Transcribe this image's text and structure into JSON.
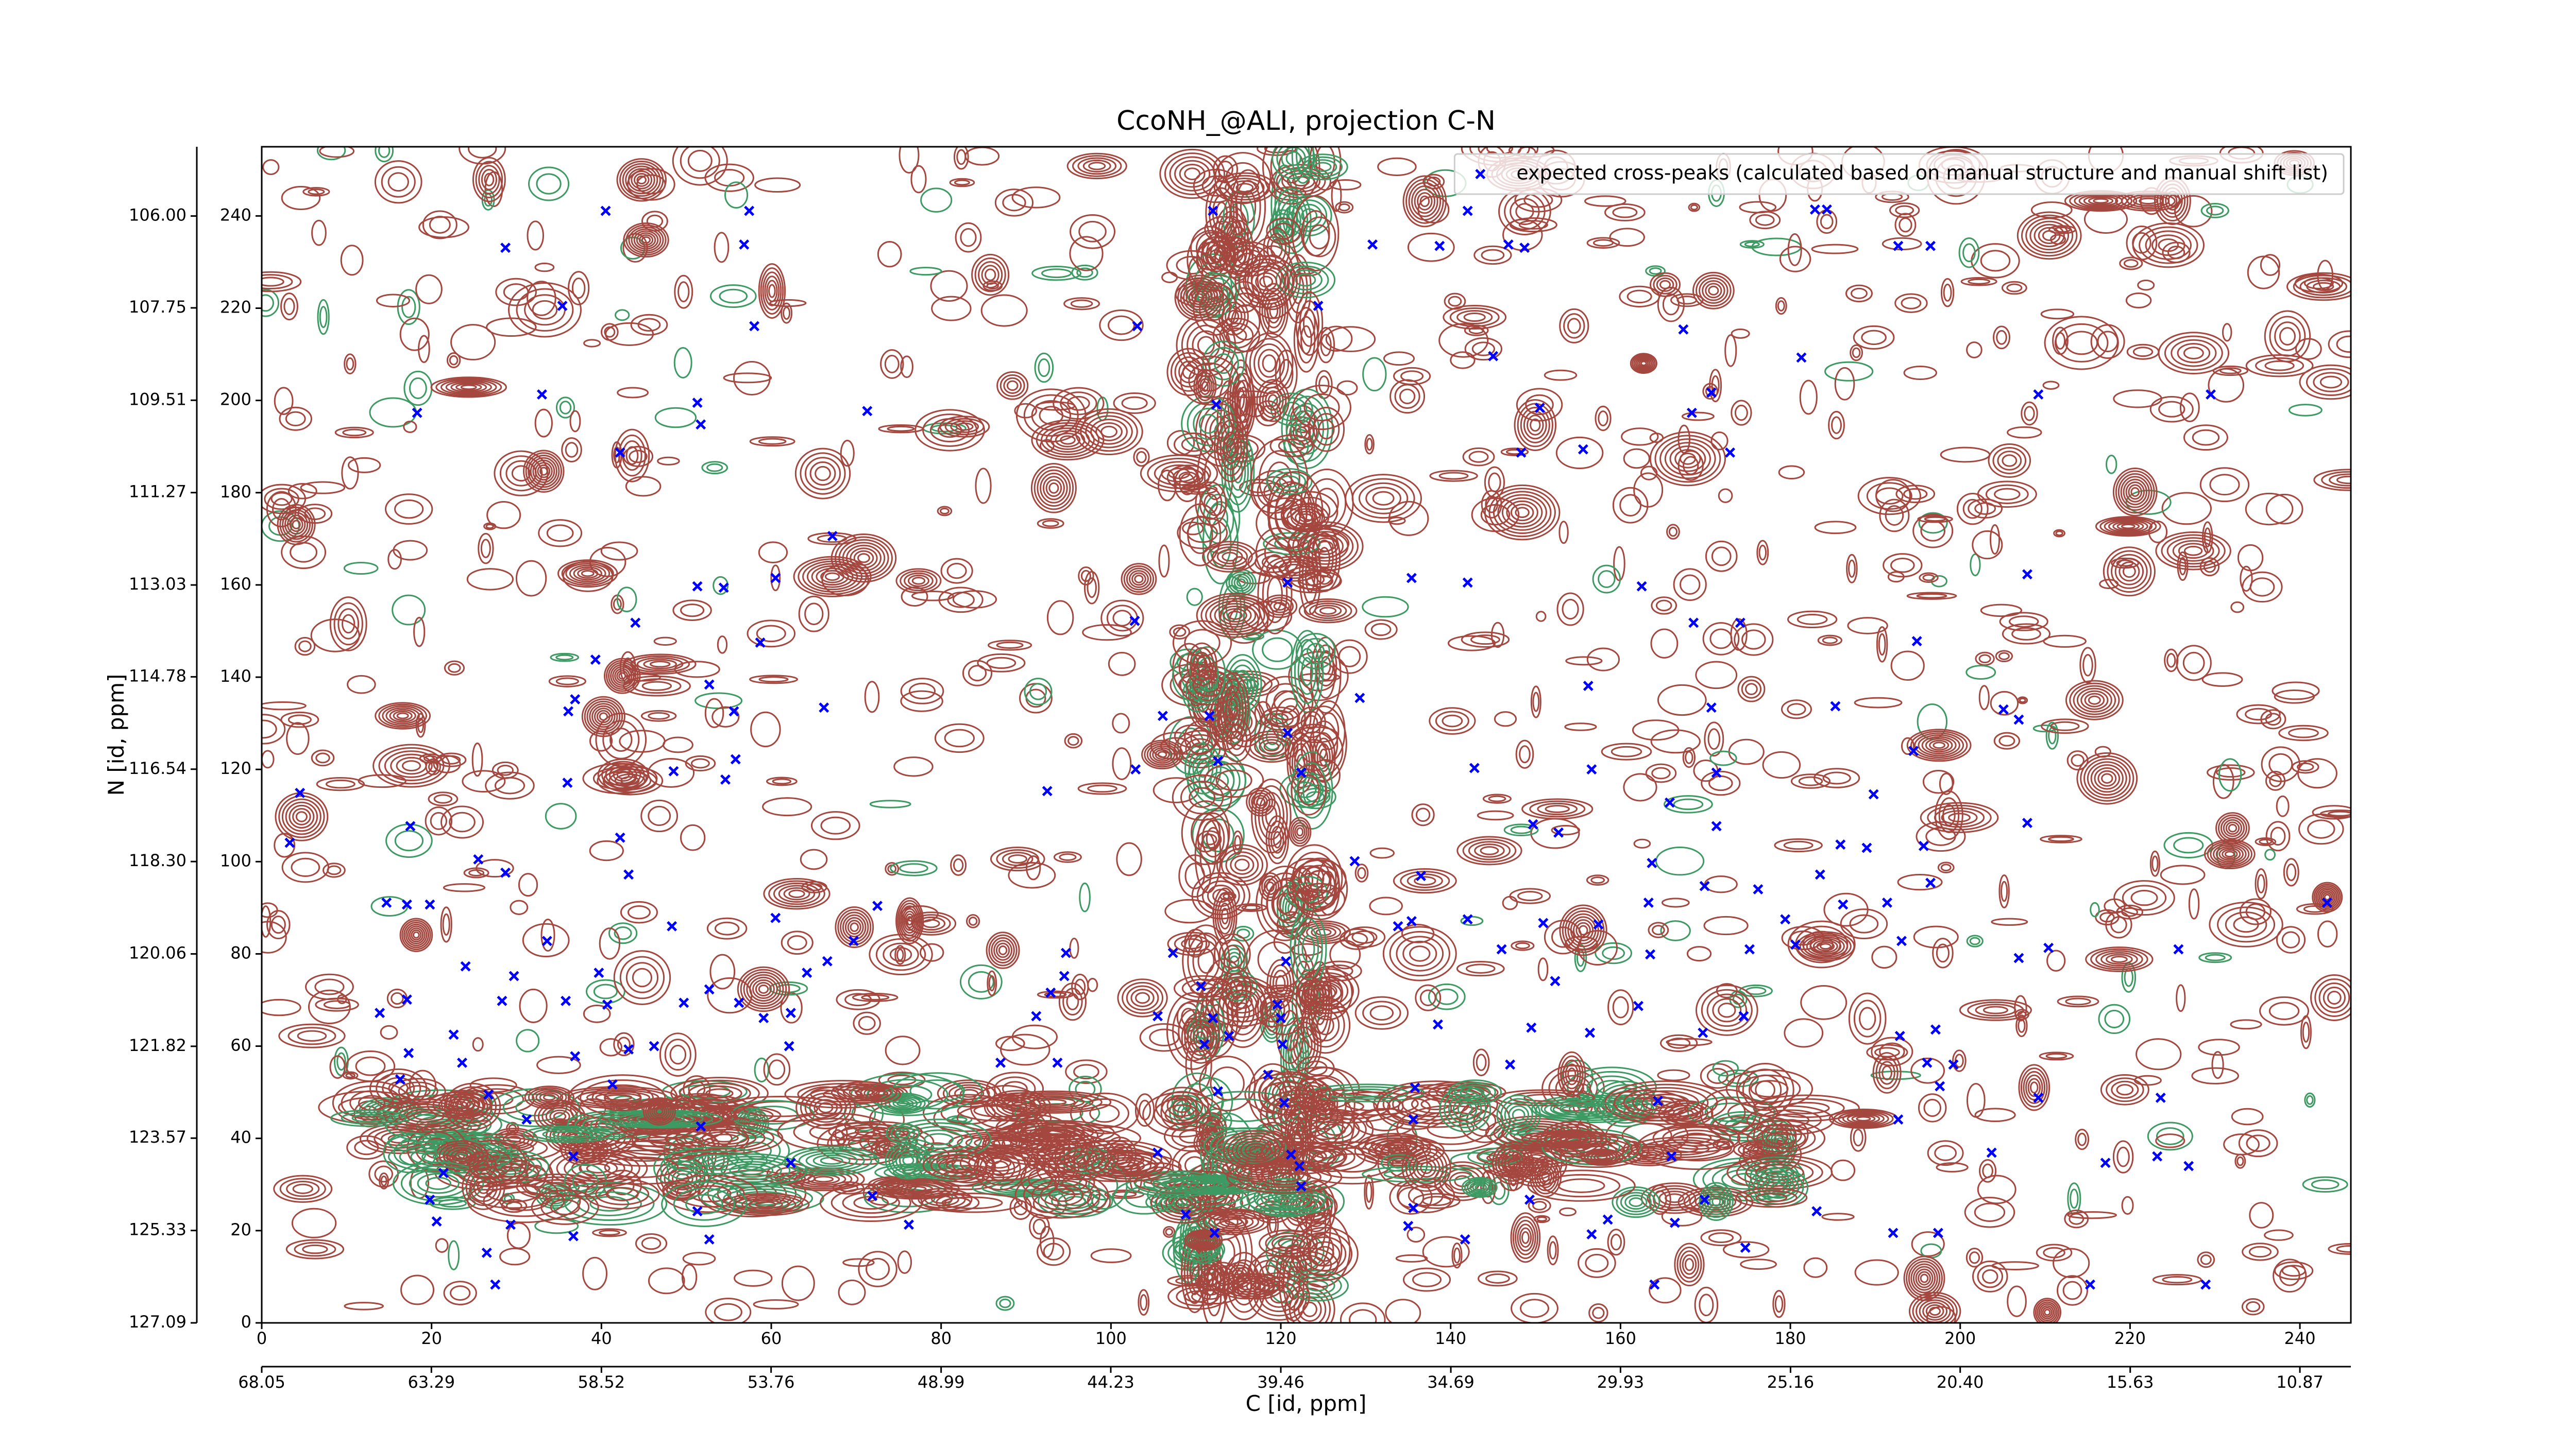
{
  "chart_data": {
    "type": "scatter",
    "title": "CcoNH_@ALI, projection C-N",
    "xlabel": "C [id, ppm]",
    "ylabel": "N [id, ppm]",
    "xlim": [
      0,
      246
    ],
    "ylim": [
      0,
      255
    ],
    "xticks": [
      0,
      20,
      40,
      60,
      80,
      100,
      120,
      140,
      160,
      180,
      200,
      220,
      240
    ],
    "yticks": [
      0,
      20,
      40,
      60,
      80,
      100,
      120,
      140,
      160,
      180,
      200,
      220,
      240
    ],
    "x2lim": [
      68.05,
      9.44
    ],
    "x2ticks": [
      68.05,
      63.29,
      58.52,
      53.76,
      48.99,
      44.23,
      39.46,
      34.69,
      29.93,
      25.16,
      {
        "value": 20.4,
        "label": "20.40"
      },
      15.63,
      10.87
    ],
    "y2lim": [
      127.09,
      104.68
    ],
    "y2ticks": [
      {
        "value": 106,
        "label": "106.00"
      },
      107.75,
      109.51,
      111.27,
      113.03,
      114.78,
      116.54,
      {
        "value": 118.3,
        "label": "118.30"
      },
      120.06,
      121.82,
      123.57,
      125.33,
      127.09
    ],
    "legend": "upper right",
    "grid": false,
    "series": [
      {
        "name": "expected cross-peaks (calculated based on manual structure and manual shift list)",
        "color": "#0000ff",
        "x": [
          40.5,
          57.4,
          28.7,
          56.8,
          35.4,
          58.0,
          18.3,
          33.0,
          51.3,
          51.7,
          42.2,
          71.3,
          67.2,
          51.3,
          54.4,
          60.5,
          44.0,
          58.7,
          39.3,
          52.7,
          36.9,
          36.1,
          66.2,
          55.6,
          55.8,
          54.6,
          36.0,
          48.5,
          4.5,
          3.3,
          17.5,
          42.2,
          43.2,
          25.5,
          28.7,
          14.7,
          17.1,
          19.8,
          60.5,
          72.5,
          69.7,
          66.6,
          33.6,
          24.0,
          29.7,
          39.7,
          48.3,
          64.2,
          52.7,
          17.1,
          13.9,
          22.6,
          28.3,
          35.8,
          40.7,
          49.7,
          56.2,
          59.1,
          62.3,
          62.1,
          17.3,
          36.9,
          23.6,
          41.3,
          43.2,
          46.2,
          26.7,
          31.2,
          51.7,
          36.7,
          62.3,
          21.4,
          19.8,
          51.3,
          20.6,
          29.3,
          36.7,
          52.7,
          26.5,
          27.5,
          71.9,
          76.2,
          16.3,
          103.1,
          112.0,
          112.4,
          120.8,
          124.4,
          130.8,
          102.8,
          92.5,
          102.9,
          106.1,
          111.6,
          112.6,
          120.8,
          122.4,
          129.3,
          128.7,
          136.5,
          133.8,
          135.4,
          142.0,
          94.7,
          94.5,
          92.9,
          91.2,
          87.0,
          93.7,
          105.5,
          112.0,
          113.9,
          111.0,
          120.0,
          120.6,
          119.6,
          120.2,
          118.5,
          112.6,
          120.4,
          110.6,
          107.3,
          105.5,
          108.8,
          112.2,
          121.2,
          122.2,
          122.4,
          135.8,
          135.6,
          138.5,
          135.6,
          135.0,
          146.0,
          147.0,
          141.7,
          142.8,
          135.4,
          142.0,
          142.0,
          138.7,
          146.8,
          148.7,
          145.0,
          150.5,
          148.3,
          155.6,
          149.7,
          152.7,
          156.2,
          156.6,
          150.9,
          157.4,
          149.5,
          156.4,
          152.3,
          163.5,
          163.3,
          163.7,
          165.8,
          162.1,
          164.4,
          166.0,
          156.6,
          149.3,
          158.5,
          164.0,
          166.4,
          167.4,
          168.4,
          170.7,
          172.9,
          162.5,
          168.6,
          174.1,
          170.7,
          171.3,
          171.3,
          169.9,
          176.2,
          175.2,
          180.6,
          174.5,
          169.7,
          169.9,
          174.7,
          183.1,
          185.3,
          185.9,
          189.0,
          186.2,
          191.4,
          195.7,
          189.8,
          196.5,
          194.5,
          194.9,
          193.1,
          192.9,
          196.1,
          199.2,
          197.1,
          192.7,
          197.6,
          203.7,
          197.4,
          192.1,
          206.9,
          210.4,
          207.9,
          205.1,
          206.9,
          207.9,
          209.2,
          182.9,
          184.3,
          192.7,
          196.5,
          181.3,
          209.2,
          217.1,
          215.3,
          223.2,
          223.6,
          226.9,
          225.7,
          228.9,
          229.5,
          243.2,
          183.5,
          179.4
        ],
        "values": [
          241.1,
          241.1,
          233.1,
          233.8,
          220.5,
          216.1,
          197.3,
          201.3,
          199.5,
          194.8,
          188.7,
          197.7,
          170.6,
          159.7,
          159.4,
          161.5,
          151.8,
          147.5,
          143.8,
          138.4,
          135.2,
          132.6,
          133.4,
          132.6,
          122.2,
          117.8,
          117.1,
          119.6,
          114.9,
          104.1,
          107.7,
          105.2,
          97.2,
          100.5,
          97.6,
          91.1,
          90.7,
          90.7,
          87.8,
          90.4,
          82.8,
          78.4,
          82.8,
          77.3,
          75.2,
          75.9,
          86.0,
          75.9,
          72.3,
          70.1,
          67.2,
          62.5,
          69.8,
          69.8,
          69.0,
          69.4,
          69.4,
          66.1,
          67.2,
          60.0,
          58.5,
          57.8,
          56.4,
          51.7,
          59.3,
          60.0,
          49.5,
          44.1,
          42.6,
          36.1,
          34.7,
          32.5,
          26.7,
          24.2,
          22.0,
          21.3,
          18.8,
          18.1,
          15.2,
          8.3,
          27.5,
          21.3,
          52.8,
          216.1,
          241.1,
          199.1,
          160.5,
          220.5,
          233.8,
          152.2,
          115.3,
          120.0,
          131.6,
          131.6,
          121.8,
          127.9,
          119.3,
          135.5,
          100.1,
          96.9,
          86.0,
          87.1,
          87.5,
          80.2,
          75.2,
          71.6,
          66.5,
          56.4,
          56.4,
          66.5,
          66.1,
          62.2,
          60.4,
          66.1,
          78.4,
          69.0,
          60.4,
          53.8,
          50.2,
          47.7,
          73.0,
          80.2,
          36.9,
          23.5,
          19.5,
          36.5,
          34.0,
          29.6,
          51.0,
          44.1,
          64.7,
          24.9,
          21.0,
          81.0,
          56.0,
          18.1,
          120.3,
          161.5,
          160.5,
          241.1,
          233.5,
          233.8,
          233.1,
          209.6,
          198.4,
          188.7,
          189.4,
          108.1,
          106.3,
          138.1,
          120.0,
          86.7,
          86.4,
          64.0,
          62.9,
          74.1,
          79.9,
          91.1,
          99.7,
          112.8,
          68.7,
          48.1,
          36.1,
          19.2,
          26.7,
          22.4,
          8.3,
          21.7,
          215.4,
          197.3,
          201.7,
          188.7,
          159.7,
          151.8,
          151.8,
          133.4,
          119.3,
          107.7,
          94.7,
          94.0,
          81.0,
          82.0,
          66.5,
          62.9,
          26.7,
          16.3,
          24.2,
          133.7,
          103.7,
          103.0,
          90.7,
          91.1,
          103.4,
          114.6,
          95.4,
          124.0,
          147.8,
          82.8,
          62.2,
          56.4,
          56.0,
          63.6,
          44.1,
          51.3,
          36.9,
          19.5,
          19.5,
          79.1,
          81.3,
          108.4,
          133.0,
          130.8,
          162.3,
          201.3,
          241.4,
          241.4,
          233.5,
          233.5,
          209.3,
          48.8,
          34.7,
          8.3,
          36.1,
          48.8,
          34.0,
          81.0,
          8.3,
          201.3,
          91.1,
          97.2,
          87.5
        ]
      }
    ]
  }
}
